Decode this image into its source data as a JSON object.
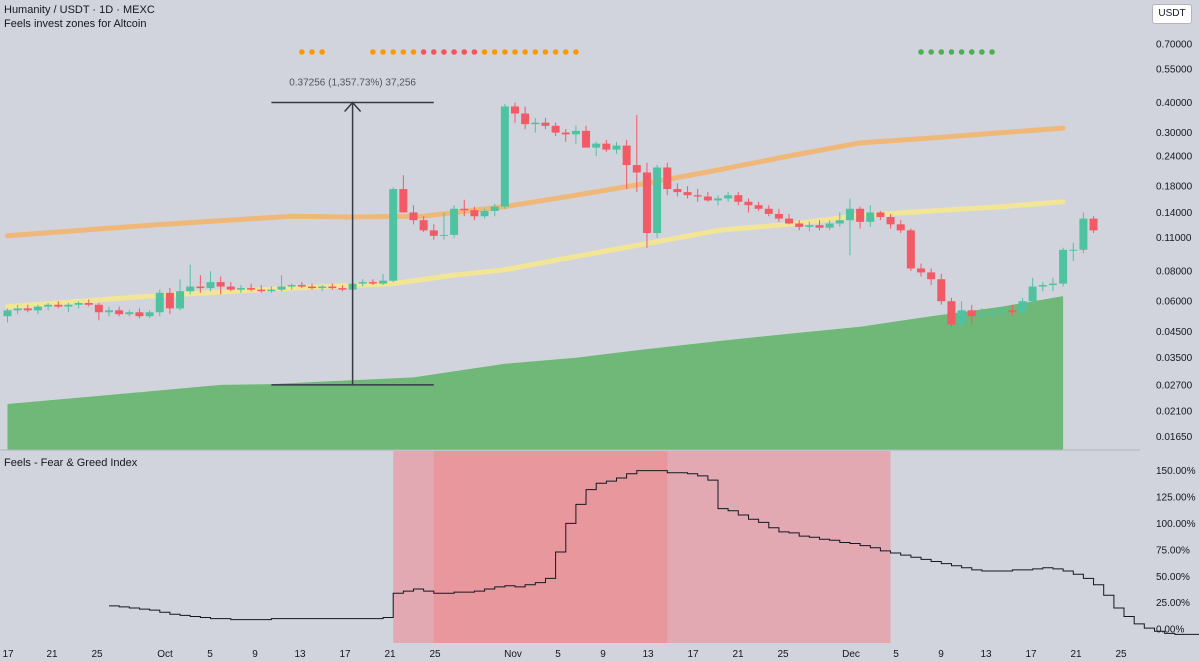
{
  "header": {
    "symbol_line": "Humanity / USDT · 1D · MEXC",
    "indicator_label": "Feels invest zones for Altcoin",
    "currency_button": "USDT"
  },
  "sub_panel": {
    "title": "Feels - Fear & Greed Index"
  },
  "measure": {
    "label": "0.37256 (1,357.73%) 37,256"
  },
  "colors": {
    "bull": "#4fc3a1",
    "bear": "#f25a66",
    "ma_orange": "#f0b878",
    "ma_yellow": "#f3e596",
    "zone_green": "#6fb878",
    "zone_pink": "#e3a9b3",
    "zone_red": "#e8979d",
    "dot_orange": "#ff9800",
    "dot_red": "#f7525f",
    "dot_green": "#4caf50"
  },
  "chart_data": [
    {
      "type": "candlestick",
      "title": "Humanity / USDT · 1D · MEXC",
      "y_scale": "log",
      "ylim": [
        0.0145,
        0.74
      ],
      "y_ticks": [
        "0.70000",
        "0.55000",
        "0.40000",
        "0.30000",
        "0.24000",
        "0.18000",
        "0.14000",
        "0.11000",
        "0.08000",
        "0.06000",
        "0.04500",
        "0.03500",
        "0.02700",
        "0.02100",
        "0.01650"
      ],
      "x_ticks": [
        "17",
        "21",
        "25",
        "Oct",
        "5",
        "9",
        "13",
        "17",
        "21",
        "25",
        "Nov",
        "5",
        "9",
        "13",
        "17",
        "21",
        "25",
        "Dec",
        "5",
        "9",
        "13",
        "17",
        "21",
        "25"
      ],
      "ohlc": [
        [
          0.052,
          0.056,
          0.049,
          0.055
        ],
        [
          0.055,
          0.058,
          0.053,
          0.056
        ],
        [
          0.056,
          0.058,
          0.054,
          0.055
        ],
        [
          0.055,
          0.058,
          0.053,
          0.057
        ],
        [
          0.057,
          0.059,
          0.055,
          0.058
        ],
        [
          0.058,
          0.06,
          0.056,
          0.057
        ],
        [
          0.057,
          0.059,
          0.054,
          0.058
        ],
        [
          0.058,
          0.06,
          0.056,
          0.059
        ],
        [
          0.059,
          0.061,
          0.057,
          0.058
        ],
        [
          0.058,
          0.059,
          0.05,
          0.054
        ],
        [
          0.054,
          0.057,
          0.052,
          0.055
        ],
        [
          0.055,
          0.057,
          0.052,
          0.053
        ],
        [
          0.053,
          0.055,
          0.052,
          0.054
        ],
        [
          0.054,
          0.056,
          0.051,
          0.052
        ],
        [
          0.052,
          0.055,
          0.051,
          0.054
        ],
        [
          0.054,
          0.067,
          0.052,
          0.065
        ],
        [
          0.065,
          0.068,
          0.053,
          0.056
        ],
        [
          0.056,
          0.074,
          0.055,
          0.066
        ],
        [
          0.066,
          0.085,
          0.064,
          0.069
        ],
        [
          0.069,
          0.077,
          0.065,
          0.068
        ],
        [
          0.068,
          0.08,
          0.066,
          0.072
        ],
        [
          0.072,
          0.076,
          0.064,
          0.069
        ],
        [
          0.069,
          0.072,
          0.066,
          0.067
        ],
        [
          0.067,
          0.07,
          0.065,
          0.068
        ],
        [
          0.068,
          0.071,
          0.066,
          0.067
        ],
        [
          0.067,
          0.07,
          0.065,
          0.066
        ],
        [
          0.066,
          0.069,
          0.065,
          0.067
        ],
        [
          0.067,
          0.077,
          0.066,
          0.069
        ],
        [
          0.069,
          0.071,
          0.067,
          0.07
        ],
        [
          0.07,
          0.072,
          0.068,
          0.069
        ],
        [
          0.069,
          0.071,
          0.067,
          0.068
        ],
        [
          0.068,
          0.07,
          0.066,
          0.069
        ],
        [
          0.069,
          0.071,
          0.067,
          0.068
        ],
        [
          0.068,
          0.07,
          0.066,
          0.067
        ],
        [
          0.067,
          0.075,
          0.028,
          0.071
        ],
        [
          0.071,
          0.074,
          0.069,
          0.072
        ],
        [
          0.072,
          0.074,
          0.07,
          0.071
        ],
        [
          0.071,
          0.078,
          0.07,
          0.073
        ],
        [
          0.073,
          0.178,
          0.072,
          0.175
        ],
        [
          0.175,
          0.2,
          0.14,
          0.14
        ],
        [
          0.14,
          0.15,
          0.125,
          0.13
        ],
        [
          0.13,
          0.135,
          0.116,
          0.118
        ],
        [
          0.118,
          0.125,
          0.108,
          0.112
        ],
        [
          0.112,
          0.14,
          0.108,
          0.113
        ],
        [
          0.113,
          0.15,
          0.11,
          0.145
        ],
        [
          0.145,
          0.158,
          0.135,
          0.143
        ],
        [
          0.143,
          0.148,
          0.13,
          0.135
        ],
        [
          0.135,
          0.145,
          0.132,
          0.142
        ],
        [
          0.142,
          0.152,
          0.135,
          0.148
        ],
        [
          0.148,
          0.395,
          0.145,
          0.385
        ],
        [
          0.385,
          0.4,
          0.33,
          0.36
        ],
        [
          0.36,
          0.385,
          0.31,
          0.325
        ],
        [
          0.325,
          0.345,
          0.3,
          0.33
        ],
        [
          0.33,
          0.345,
          0.31,
          0.32
        ],
        [
          0.32,
          0.33,
          0.29,
          0.3
        ],
        [
          0.3,
          0.31,
          0.275,
          0.295
        ],
        [
          0.295,
          0.32,
          0.27,
          0.305
        ],
        [
          0.305,
          0.32,
          0.26,
          0.26
        ],
        [
          0.26,
          0.275,
          0.24,
          0.27
        ],
        [
          0.27,
          0.28,
          0.25,
          0.255
        ],
        [
          0.255,
          0.275,
          0.245,
          0.265
        ],
        [
          0.265,
          0.28,
          0.175,
          0.22
        ],
        [
          0.22,
          0.355,
          0.17,
          0.205
        ],
        [
          0.205,
          0.225,
          0.1,
          0.115
        ],
        [
          0.115,
          0.22,
          0.11,
          0.215
        ],
        [
          0.215,
          0.225,
          0.165,
          0.175
        ],
        [
          0.175,
          0.185,
          0.163,
          0.17
        ],
        [
          0.17,
          0.18,
          0.16,
          0.165
        ],
        [
          0.165,
          0.175,
          0.155,
          0.163
        ],
        [
          0.163,
          0.17,
          0.155,
          0.157
        ],
        [
          0.157,
          0.165,
          0.15,
          0.16
        ],
        [
          0.16,
          0.17,
          0.155,
          0.165
        ],
        [
          0.165,
          0.17,
          0.15,
          0.155
        ],
        [
          0.155,
          0.16,
          0.14,
          0.15
        ],
        [
          0.15,
          0.155,
          0.142,
          0.145
        ],
        [
          0.145,
          0.15,
          0.135,
          0.138
        ],
        [
          0.138,
          0.145,
          0.128,
          0.132
        ],
        [
          0.132,
          0.138,
          0.125,
          0.126
        ],
        [
          0.126,
          0.13,
          0.118,
          0.122
        ],
        [
          0.122,
          0.128,
          0.117,
          0.124
        ],
        [
          0.124,
          0.13,
          0.118,
          0.121
        ],
        [
          0.121,
          0.13,
          0.118,
          0.126
        ],
        [
          0.126,
          0.14,
          0.122,
          0.13
        ],
        [
          0.13,
          0.16,
          0.093,
          0.145
        ],
        [
          0.145,
          0.148,
          0.12,
          0.128
        ],
        [
          0.128,
          0.15,
          0.122,
          0.14
        ],
        [
          0.14,
          0.142,
          0.13,
          0.134
        ],
        [
          0.134,
          0.138,
          0.12,
          0.125
        ],
        [
          0.125,
          0.13,
          0.115,
          0.118
        ],
        [
          0.118,
          0.12,
          0.08,
          0.082
        ],
        [
          0.082,
          0.086,
          0.076,
          0.079
        ],
        [
          0.079,
          0.082,
          0.07,
          0.074
        ],
        [
          0.074,
          0.078,
          0.058,
          0.06
        ],
        [
          0.06,
          0.062,
          0.047,
          0.048
        ],
        [
          0.048,
          0.06,
          0.046,
          0.055
        ],
        [
          0.055,
          0.058,
          0.048,
          0.052
        ],
        [
          0.052,
          0.056,
          0.049,
          0.053
        ],
        [
          0.053,
          0.056,
          0.051,
          0.054
        ],
        [
          0.054,
          0.057,
          0.051,
          0.055
        ],
        [
          0.055,
          0.058,
          0.052,
          0.054
        ],
        [
          0.054,
          0.062,
          0.053,
          0.06
        ],
        [
          0.06,
          0.075,
          0.058,
          0.069
        ],
        [
          0.069,
          0.072,
          0.066,
          0.07
        ],
        [
          0.07,
          0.075,
          0.066,
          0.071
        ],
        [
          0.071,
          0.1,
          0.069,
          0.098
        ],
        [
          0.098,
          0.105,
          0.088,
          0.098
        ],
        [
          0.098,
          0.14,
          0.095,
          0.132
        ],
        [
          0.132,
          0.135,
          0.115,
          0.118
        ]
      ],
      "ma_orange": [
        [
          0,
          0.112
        ],
        [
          14,
          0.124
        ],
        [
          28,
          0.135
        ],
        [
          34,
          0.134
        ],
        [
          41,
          0.135
        ],
        [
          49,
          0.148
        ],
        [
          56,
          0.165
        ],
        [
          63,
          0.185
        ],
        [
          70,
          0.21
        ],
        [
          77,
          0.24
        ],
        [
          84,
          0.272
        ],
        [
          91,
          0.285
        ],
        [
          98,
          0.3
        ],
        [
          104,
          0.313
        ]
      ],
      "ma_yellow": [
        [
          0,
          0.057
        ],
        [
          14,
          0.063
        ],
        [
          28,
          0.068
        ],
        [
          38,
          0.071
        ],
        [
          44,
          0.077
        ],
        [
          49,
          0.081
        ],
        [
          56,
          0.092
        ],
        [
          63,
          0.104
        ],
        [
          70,
          0.118
        ],
        [
          77,
          0.125
        ],
        [
          84,
          0.136
        ],
        [
          91,
          0.142
        ],
        [
          98,
          0.148
        ],
        [
          104,
          0.155
        ]
      ],
      "zone_green": [
        [
          0,
          0.0225
        ],
        [
          10,
          0.0245
        ],
        [
          21,
          0.027
        ],
        [
          26,
          0.0272
        ],
        [
          32,
          0.028
        ],
        [
          40,
          0.029
        ],
        [
          49,
          0.033
        ],
        [
          56,
          0.035
        ],
        [
          63,
          0.038
        ],
        [
          70,
          0.041
        ],
        [
          77,
          0.044
        ],
        [
          84,
          0.047
        ],
        [
          91,
          0.052
        ],
        [
          98,
          0.057
        ],
        [
          104,
          0.063
        ]
      ],
      "measure": {
        "from_index": 26,
        "to_index": 42,
        "low": 0.027,
        "high": 0.4
      },
      "dots": [
        {
          "color": "orange",
          "count": 3,
          "start_index": 29
        },
        {
          "color": "orange",
          "count": 5,
          "start_index": 36
        },
        {
          "color": "red",
          "count": 6,
          "start_index": 41
        },
        {
          "color": "orange",
          "count": 10,
          "start_index": 47
        },
        {
          "color": "green",
          "count": 8,
          "start_index": 90
        }
      ]
    },
    {
      "type": "line",
      "title": "Feels - Fear & Greed Index",
      "ylim": [
        -15,
        160
      ],
      "y_ticks": [
        "150.00%",
        "125.00%",
        "100.00%",
        "75.00%",
        "50.00%",
        "25.00%",
        "0.00%"
      ],
      "values": [
        22,
        21,
        20,
        19,
        18,
        16,
        14,
        13,
        12,
        11,
        10,
        10,
        9,
        9,
        9,
        9,
        10,
        10,
        10,
        10,
        10,
        10,
        10,
        10,
        10,
        10,
        10,
        11,
        34,
        36,
        38,
        36,
        34,
        34,
        35,
        35,
        36,
        38,
        40,
        41,
        40,
        42,
        44,
        48,
        73,
        100,
        118,
        132,
        138,
        140,
        143,
        147,
        150,
        150,
        150,
        148,
        148,
        147,
        145,
        141,
        114,
        112,
        108,
        104,
        101,
        96,
        92,
        91,
        88,
        87,
        85,
        84,
        82,
        81,
        79,
        77,
        74,
        72,
        70,
        68,
        66,
        64,
        62,
        60,
        58,
        56,
        55,
        55,
        55,
        56,
        56,
        57,
        58,
        57,
        55,
        52,
        48,
        42,
        32,
        20,
        12,
        5,
        1,
        -2,
        -4,
        -5,
        -5,
        -5,
        -5,
        -5,
        -4,
        -2,
        2,
        5
      ],
      "start_index": 10,
      "zones": [
        {
          "color": "pink",
          "from_index": 38,
          "to_index": 87
        },
        {
          "color": "red",
          "from_index": 42,
          "to_index": 65
        }
      ]
    }
  ]
}
